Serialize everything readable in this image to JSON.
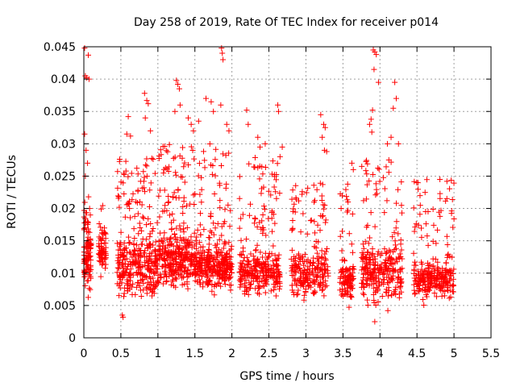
{
  "chart_data": {
    "type": "scatter",
    "title": "Day 258 of 2019, Rate Of TEC Index for receiver p014",
    "xlabel": "GPS time / hours",
    "ylabel": "ROTI / TECUs",
    "xlim": [
      0,
      5.5
    ],
    "ylim": [
      0,
      0.045
    ],
    "x_ticks": [
      0,
      0.5,
      1,
      1.5,
      2,
      2.5,
      3,
      3.5,
      4,
      4.5,
      5,
      5.5
    ],
    "x_tick_labels": [
      "0",
      "0.5",
      "1",
      "1.5",
      "2",
      "2.5",
      "3",
      "3.5",
      "4",
      "4.5",
      "5",
      "5.5"
    ],
    "y_ticks": [
      0,
      0.005,
      0.01,
      0.015,
      0.02,
      0.025,
      0.03,
      0.035,
      0.04,
      0.045
    ],
    "y_tick_labels": [
      "0",
      "0.005",
      "0.01",
      "0.015",
      "0.02",
      "0.025",
      "0.03",
      "0.035",
      "0.04",
      "0.045"
    ],
    "grid": true,
    "marker": "+",
    "marker_color": "#ff0000",
    "series": [
      {
        "name": "ROTI",
        "clusters": [
          {
            "x": [
              0.0,
              0.1
            ],
            "y_range": [
              0.004,
              0.022
            ],
            "y_center": 0.012,
            "count": 110
          },
          {
            "x": [
              0.2,
              0.3
            ],
            "y_range": [
              0.007,
              0.024
            ],
            "y_center": 0.013,
            "count": 70
          },
          {
            "x": [
              0.45,
              1.0
            ],
            "y_range": [
              0.003,
              0.028
            ],
            "y_center": 0.011,
            "count": 330
          },
          {
            "x": [
              1.0,
              1.5
            ],
            "y_range": [
              0.004,
              0.03
            ],
            "y_center": 0.012,
            "count": 330
          },
          {
            "x": [
              1.5,
              2.0
            ],
            "y_range": [
              0.005,
              0.03
            ],
            "y_center": 0.011,
            "count": 330
          },
          {
            "x": [
              2.1,
              2.65
            ],
            "y_range": [
              0.004,
              0.028
            ],
            "y_center": 0.01,
            "count": 300
          },
          {
            "x": [
              2.8,
              3.3
            ],
            "y_range": [
              0.004,
              0.024
            ],
            "y_center": 0.01,
            "count": 240
          },
          {
            "x": [
              3.45,
              3.65
            ],
            "y_range": [
              0.003,
              0.025
            ],
            "y_center": 0.009,
            "count": 110
          },
          {
            "x": [
              3.75,
              4.3
            ],
            "y_range": [
              0.002,
              0.028
            ],
            "y_center": 0.01,
            "count": 280
          },
          {
            "x": [
              4.45,
              5.0
            ],
            "y_range": [
              0.004,
              0.025
            ],
            "y_center": 0.009,
            "count": 270
          }
        ],
        "outliers": [
          {
            "x": 0.01,
            "y": 0.0448
          },
          {
            "x": 0.02,
            "y": 0.0405
          },
          {
            "x": 0.04,
            "y": 0.0402
          },
          {
            "x": 0.06,
            "y": 0.0437
          },
          {
            "x": 0.07,
            "y": 0.04
          },
          {
            "x": 0.01,
            "y": 0.0315
          },
          {
            "x": 0.03,
            "y": 0.029
          },
          {
            "x": 0.05,
            "y": 0.027
          },
          {
            "x": 0.02,
            "y": 0.025
          },
          {
            "x": 0.82,
            "y": 0.0378
          },
          {
            "x": 0.85,
            "y": 0.0367
          },
          {
            "x": 0.87,
            "y": 0.0362
          },
          {
            "x": 0.83,
            "y": 0.034
          },
          {
            "x": 0.6,
            "y": 0.0342
          },
          {
            "x": 0.58,
            "y": 0.0315
          },
          {
            "x": 0.63,
            "y": 0.0312
          },
          {
            "x": 0.9,
            "y": 0.032
          },
          {
            "x": 1.25,
            "y": 0.0398
          },
          {
            "x": 1.27,
            "y": 0.0392
          },
          {
            "x": 1.29,
            "y": 0.0385
          },
          {
            "x": 1.3,
            "y": 0.036
          },
          {
            "x": 1.23,
            "y": 0.035
          },
          {
            "x": 1.41,
            "y": 0.034
          },
          {
            "x": 1.45,
            "y": 0.033
          },
          {
            "x": 1.48,
            "y": 0.032
          },
          {
            "x": 1.55,
            "y": 0.0335
          },
          {
            "x": 1.65,
            "y": 0.037
          },
          {
            "x": 1.72,
            "y": 0.0365
          },
          {
            "x": 1.75,
            "y": 0.035
          },
          {
            "x": 1.86,
            "y": 0.0448
          },
          {
            "x": 1.87,
            "y": 0.044
          },
          {
            "x": 1.88,
            "y": 0.043
          },
          {
            "x": 1.85,
            "y": 0.036
          },
          {
            "x": 1.96,
            "y": 0.032
          },
          {
            "x": 1.93,
            "y": 0.033
          },
          {
            "x": 2.2,
            "y": 0.0352
          },
          {
            "x": 2.22,
            "y": 0.033
          },
          {
            "x": 2.35,
            "y": 0.031
          },
          {
            "x": 2.38,
            "y": 0.0295
          },
          {
            "x": 2.45,
            "y": 0.03
          },
          {
            "x": 2.62,
            "y": 0.036
          },
          {
            "x": 2.63,
            "y": 0.035
          },
          {
            "x": 2.68,
            "y": 0.0295
          },
          {
            "x": 2.65,
            "y": 0.028
          },
          {
            "x": 3.2,
            "y": 0.0345
          },
          {
            "x": 3.24,
            "y": 0.033
          },
          {
            "x": 3.26,
            "y": 0.0325
          },
          {
            "x": 3.22,
            "y": 0.031
          },
          {
            "x": 3.25,
            "y": 0.029
          },
          {
            "x": 3.28,
            "y": 0.0288
          },
          {
            "x": 3.62,
            "y": 0.027
          },
          {
            "x": 3.64,
            "y": 0.026
          },
          {
            "x": 3.91,
            "y": 0.0445
          },
          {
            "x": 3.93,
            "y": 0.0442
          },
          {
            "x": 3.95,
            "y": 0.0438
          },
          {
            "x": 3.92,
            "y": 0.0415
          },
          {
            "x": 3.98,
            "y": 0.0395
          },
          {
            "x": 3.9,
            "y": 0.0352
          },
          {
            "x": 3.88,
            "y": 0.0338
          },
          {
            "x": 3.86,
            "y": 0.033
          },
          {
            "x": 3.89,
            "y": 0.0318
          },
          {
            "x": 4.2,
            "y": 0.0395
          },
          {
            "x": 4.22,
            "y": 0.037
          },
          {
            "x": 4.18,
            "y": 0.0355
          },
          {
            "x": 4.15,
            "y": 0.031
          },
          {
            "x": 4.25,
            "y": 0.03
          },
          {
            "x": 4.1,
            "y": 0.03
          },
          {
            "x": 4.12,
            "y": 0.0275
          },
          {
            "x": 3.93,
            "y": 0.0025
          },
          {
            "x": 0.52,
            "y": 0.0035
          },
          {
            "x": 0.53,
            "y": 0.0032
          }
        ]
      }
    ]
  }
}
